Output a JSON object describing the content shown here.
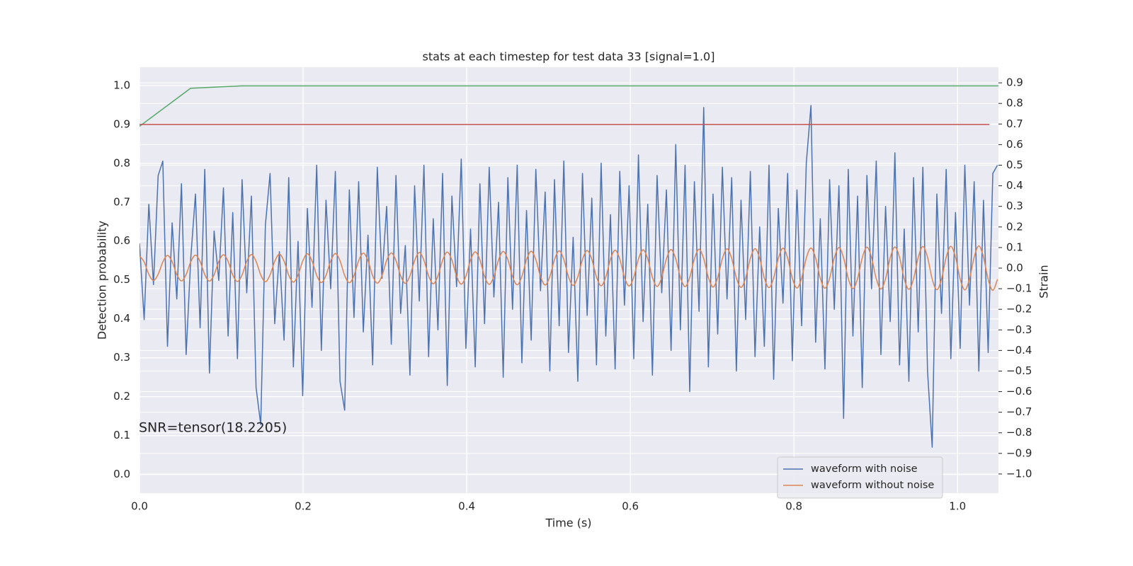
{
  "chart_data": {
    "type": "line",
    "title": "stats at each timestep for test data 33 [signal=1.0]",
    "xlabel": "Time (s)",
    "ylabel": "Detection probability",
    "y2label": "Strain",
    "annotation": "SNR=tensor(18.2205)",
    "grid": true,
    "legend": "lower right",
    "xlim": [
      0,
      1.05
    ],
    "xticks": [
      {
        "value": 0,
        "label": "0.0"
      },
      0.2,
      0.4,
      0.6,
      0.8,
      {
        "value": 1,
        "label": "1.0"
      }
    ],
    "ylim": [
      -0.048,
      1.047
    ],
    "yticks": [
      {
        "value": 0,
        "label": "0.0"
      },
      0.1,
      0.2,
      0.3,
      0.4,
      0.5,
      0.6,
      0.7,
      0.8,
      0.9,
      {
        "value": 1,
        "label": "1.0"
      }
    ],
    "y2lim": [
      -1.093,
      0.976
    ],
    "y2ticks": [
      {
        "value": -1,
        "label": "−1.0"
      },
      {
        "value": -0.9,
        "label": "−0.9"
      },
      {
        "value": -0.8,
        "label": "−0.8"
      },
      {
        "value": -0.7,
        "label": "−0.7"
      },
      {
        "value": -0.6,
        "label": "−0.6"
      },
      {
        "value": -0.5,
        "label": "−0.5"
      },
      {
        "value": -0.4,
        "label": "−0.4"
      },
      {
        "value": -0.3,
        "label": "−0.3"
      },
      {
        "value": -0.2,
        "label": "−0.2"
      },
      {
        "value": -0.1,
        "label": "−0.1"
      },
      {
        "value": 0,
        "label": "0.0"
      },
      0.1,
      0.2,
      0.3,
      0.4,
      0.5,
      0.6,
      0.7,
      0.8,
      0.9
    ],
    "x": [
      0,
      0.0057,
      0.0114,
      0.0171,
      0.0228,
      0.0285,
      0.0342,
      0.0399,
      0.0456,
      0.0513,
      0.057,
      0.0627,
      0.0684,
      0.0741,
      0.0798,
      0.0855,
      0.0912,
      0.0969,
      0.1026,
      0.1083,
      0.114,
      0.1197,
      0.1254,
      0.1311,
      0.1368,
      0.1425,
      0.1482,
      0.1539,
      0.1596,
      0.1653,
      0.171,
      0.1767,
      0.1824,
      0.1881,
      0.1938,
      0.1995,
      0.2052,
      0.2109,
      0.2166,
      0.2223,
      0.228,
      0.2337,
      0.2394,
      0.2451,
      0.2508,
      0.2565,
      0.2622,
      0.2679,
      0.2736,
      0.2793,
      0.285,
      0.2907,
      0.2964,
      0.3021,
      0.3078,
      0.3135,
      0.3192,
      0.3249,
      0.3306,
      0.3363,
      0.342,
      0.3477,
      0.3534,
      0.3591,
      0.3648,
      0.3705,
      0.3762,
      0.3819,
      0.3876,
      0.3933,
      0.399,
      0.4047,
      0.4104,
      0.4161,
      0.4218,
      0.4275,
      0.4332,
      0.4389,
      0.4446,
      0.4503,
      0.456,
      0.4617,
      0.4674,
      0.4731,
      0.4788,
      0.4845,
      0.4902,
      0.4959,
      0.5016,
      0.5073,
      0.513,
      0.5187,
      0.5244,
      0.5301,
      0.5358,
      0.5415,
      0.5472,
      0.5529,
      0.5586,
      0.5643,
      0.57,
      0.5757,
      0.5814,
      0.5871,
      0.5928,
      0.5985,
      0.6042,
      0.6099,
      0.6156,
      0.6213,
      0.627,
      0.6327,
      0.6384,
      0.6441,
      0.6498,
      0.6555,
      0.6612,
      0.6669,
      0.6726,
      0.6783,
      0.684,
      0.6897,
      0.6954,
      0.7011,
      0.7068,
      0.7125,
      0.7182,
      0.7239,
      0.7296,
      0.7353,
      0.741,
      0.7467,
      0.7524,
      0.7581,
      0.7638,
      0.7695,
      0.7752,
      0.7809,
      0.7866,
      0.7923,
      0.798,
      0.8037,
      0.8094,
      0.8151,
      0.8208,
      0.8265,
      0.8322,
      0.8379,
      0.8436,
      0.8493,
      0.855,
      0.8607,
      0.8664,
      0.8721,
      0.8778,
      0.8835,
      0.8892,
      0.8949,
      0.9006,
      0.9063,
      0.912,
      0.9177,
      0.9234,
      0.9291,
      0.9348,
      0.9405,
      0.9462,
      0.9519,
      0.9576,
      0.9633,
      0.969,
      0.9747,
      0.9804,
      0.9861,
      0.9918,
      0.9975,
      1.0032,
      1.0089,
      1.0146,
      1.0203,
      1.026,
      1.0317,
      1.0374,
      1.0431,
      1.0488
    ],
    "series": [
      {
        "name": "waveform with noise",
        "color": "#4c72b0",
        "axis": "y2",
        "values": [
          0.12,
          -0.25,
          0.31,
          -0.08,
          0.45,
          0.52,
          -0.38,
          0.22,
          -0.15,
          0.41,
          -0.42,
          0.05,
          0.36,
          -0.29,
          0.48,
          -0.51,
          0.18,
          -0.06,
          0.39,
          -0.33,
          0.27,
          -0.44,
          0.43,
          -0.12,
          0.35,
          -0.58,
          -0.76,
          0.21,
          0.46,
          -0.27,
          0.08,
          -0.35,
          0.44,
          -0.48,
          0.13,
          -0.62,
          0.29,
          -0.19,
          0.5,
          -0.4,
          0.33,
          -0.1,
          0.47,
          -0.55,
          -0.69,
          0.38,
          -0.24,
          0.42,
          -0.31,
          0.16,
          -0.47,
          0.49,
          -0.05,
          0.3,
          -0.37,
          0.45,
          -0.22,
          0.11,
          -0.52,
          0.4,
          -0.16,
          0.5,
          -0.43,
          0.24,
          -0.3,
          0.46,
          -0.57,
          0.35,
          -0.09,
          0.53,
          -0.39,
          0.19,
          -0.48,
          0.41,
          -0.27,
          0.49,
          -0.14,
          0.32,
          -0.53,
          0.44,
          -0.2,
          0.5,
          -0.46,
          0.28,
          -0.35,
          0.48,
          -0.11,
          0.37,
          -0.5,
          0.43,
          -0.28,
          0.52,
          -0.41,
          0.15,
          -0.55,
          0.46,
          -0.23,
          0.34,
          -0.47,
          0.51,
          -0.33,
          0.26,
          -0.49,
          0.47,
          -0.18,
          0.4,
          -0.44,
          0.55,
          -0.26,
          0.31,
          -0.52,
          0.45,
          -0.12,
          0.38,
          -0.4,
          0.6,
          -0.3,
          0.5,
          -0.6,
          0.42,
          -0.21,
          0.78,
          -0.48,
          0.36,
          -0.32,
          0.49,
          -0.15,
          0.44,
          -0.5,
          0.33,
          -0.25,
          0.47,
          -0.43,
          0.2,
          -0.38,
          0.5,
          -0.54,
          0.29,
          -0.17,
          0.46,
          -0.45,
          0.38,
          -0.28,
          0.51,
          0.79,
          -0.36,
          0.24,
          -0.49,
          0.43,
          -0.2,
          0.4,
          -0.73,
          0.48,
          -0.33,
          0.35,
          -0.58,
          0.45,
          -0.1,
          0.52,
          -0.42,
          0.3,
          -0.26,
          0.56,
          -0.47,
          0.19,
          -0.55,
          0.44,
          -0.31,
          0.49,
          -0.5,
          -0.87,
          0.36,
          -0.22,
          0.48,
          -0.44,
          0.27,
          -0.39,
          0.5,
          -0.18,
          0.42,
          -0.5,
          0.33,
          -0.41,
          0.46,
          0.5
        ]
      },
      {
        "name": "waveform without noise",
        "color": "#dd8452",
        "axis": "y2",
        "smooth": true,
        "values": [
          0.06,
          0.03,
          -0.03,
          -0.06,
          -0.03,
          0.03,
          0.062,
          0.031,
          -0.031,
          -0.062,
          -0.031,
          0.031,
          0.063,
          0.032,
          -0.032,
          -0.063,
          -0.032,
          0.032,
          0.065,
          0.033,
          -0.033,
          -0.065,
          -0.033,
          0.033,
          0.066,
          0.033,
          -0.033,
          -0.066,
          -0.033,
          0.033,
          0.068,
          0.034,
          -0.034,
          -0.068,
          -0.034,
          0.034,
          0.07,
          0.035,
          -0.035,
          -0.07,
          -0.035,
          0.035,
          0.071,
          0.036,
          -0.036,
          -0.071,
          -0.036,
          0.036,
          0.073,
          0.037,
          -0.037,
          -0.073,
          -0.037,
          0.037,
          0.074,
          0.037,
          -0.037,
          -0.074,
          -0.037,
          0.037,
          0.076,
          0.038,
          -0.038,
          -0.076,
          -0.038,
          0.038,
          0.078,
          0.039,
          -0.039,
          -0.078,
          -0.039,
          0.039,
          0.079,
          0.04,
          -0.04,
          -0.079,
          -0.04,
          0.04,
          0.081,
          0.041,
          -0.041,
          -0.081,
          -0.041,
          0.041,
          0.082,
          0.041,
          -0.041,
          -0.082,
          -0.041,
          0.041,
          0.084,
          0.042,
          -0.042,
          -0.084,
          -0.042,
          0.042,
          0.086,
          0.043,
          -0.043,
          -0.086,
          -0.043,
          0.043,
          0.087,
          0.044,
          -0.044,
          -0.087,
          -0.044,
          0.044,
          0.089,
          0.045,
          -0.045,
          -0.089,
          -0.045,
          0.045,
          0.09,
          0.045,
          -0.045,
          -0.09,
          -0.045,
          0.045,
          0.092,
          0.046,
          -0.046,
          -0.092,
          -0.046,
          0.046,
          0.094,
          0.047,
          -0.047,
          -0.094,
          -0.047,
          0.047,
          0.095,
          0.048,
          -0.048,
          -0.095,
          -0.048,
          0.048,
          0.097,
          0.049,
          -0.049,
          -0.097,
          -0.049,
          0.049,
          0.098,
          0.049,
          -0.049,
          -0.098,
          -0.049,
          0.049,
          0.1,
          0.05,
          -0.05,
          -0.1,
          -0.05,
          0.05,
          0.102,
          0.051,
          -0.051,
          -0.102,
          -0.051,
          0.051,
          0.103,
          0.052,
          -0.052,
          -0.103,
          -0.052,
          0.052,
          0.105,
          0.053,
          -0.053,
          -0.105,
          -0.053,
          0.053,
          0.106,
          0.053,
          -0.053,
          -0.106,
          -0.053,
          0.053,
          0.108,
          0.054,
          -0.054,
          -0.108,
          -0.054
        ]
      },
      {
        "color": "#55a868",
        "x": [
          0,
          0.0625,
          0.125,
          1.05
        ],
        "values": [
          0.895,
          0.993,
          0.999,
          0.999
        ]
      },
      {
        "color": "#c44e52",
        "x": [
          0,
          1.039
        ],
        "values": [
          0.9,
          0.9
        ]
      }
    ]
  }
}
